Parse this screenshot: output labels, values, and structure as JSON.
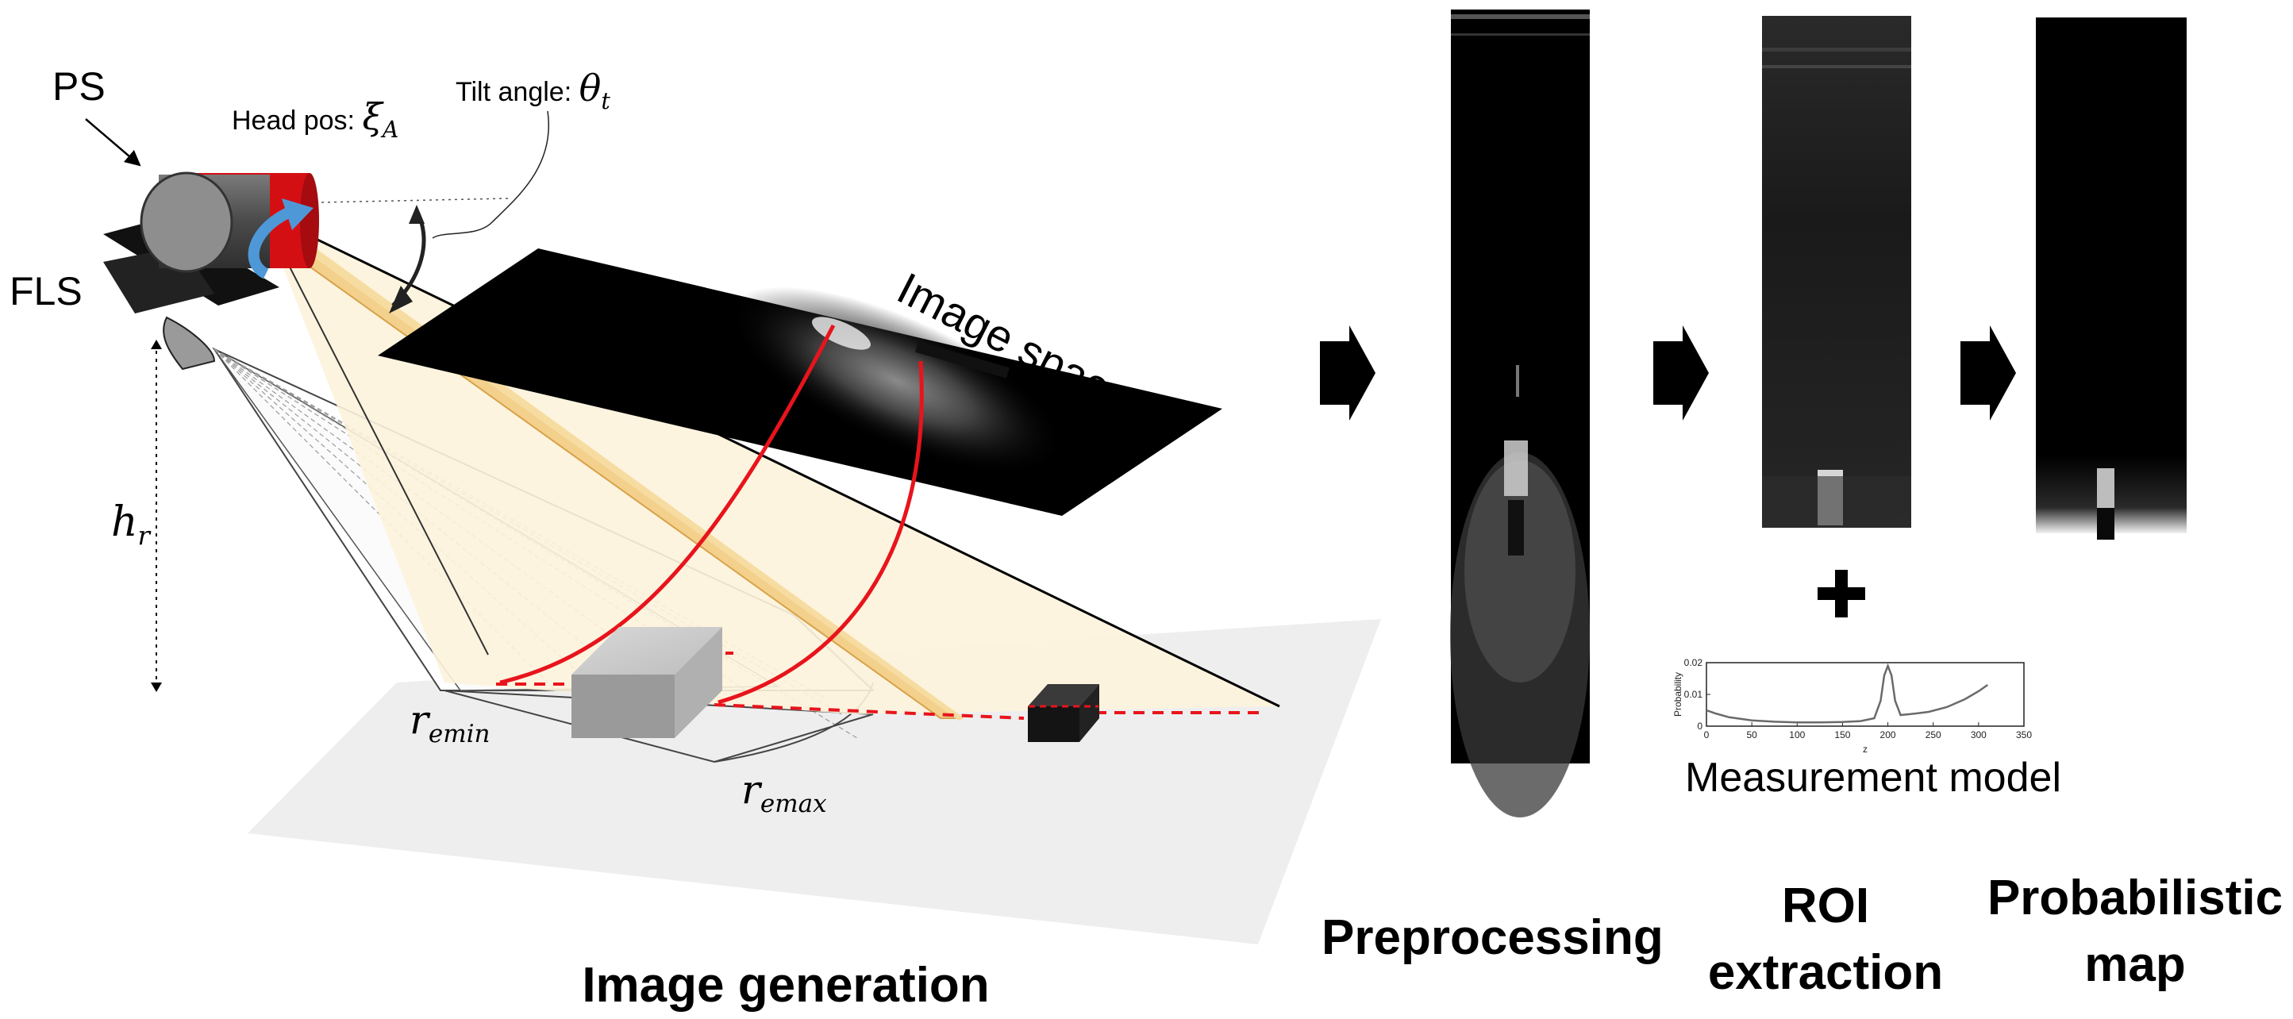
{
  "labels": {
    "ps": "PS",
    "fls": "FLS",
    "head_pos_text": "Head pos:",
    "head_pos_symbol": "ξ",
    "head_pos_sub": "A",
    "tilt_text": "Tilt angle:",
    "tilt_symbol": "θ",
    "tilt_sub": "t",
    "h_symbol": "h",
    "h_sub": "r",
    "remin_symbol": "r",
    "remin_sub": "emin",
    "remax_symbol": "r",
    "remax_sub": "emax",
    "image_space": "Image space"
  },
  "captions": {
    "image_generation": "Image generation",
    "preprocessing": "Preprocessing",
    "roi_line1": "ROI",
    "roi_line2": "extraction",
    "prob_line1": "Probabilistic",
    "prob_line2": "map",
    "measurement_model": "Measurement model",
    "plus": "+"
  },
  "colors": {
    "beam_fill": "#fdf3dc",
    "beam_edge": "#f3cf7a",
    "red_arc": "#e8141c",
    "camera_red": "#d40f14",
    "rotate_arrow": "#4f98d8",
    "floor": "#efefef"
  },
  "chart_data": {
    "type": "line",
    "title": "",
    "xlabel": "z",
    "ylabel": "Probability",
    "xlim": [
      0,
      350
    ],
    "ylim": [
      0,
      0.02
    ],
    "xticks": [
      "0",
      "50",
      "100",
      "150",
      "200",
      "250",
      "300",
      "350"
    ],
    "yticks": [
      "0",
      "0.01",
      "0.02"
    ],
    "series": [
      {
        "x": [
          0,
          10,
          25,
          50,
          75,
          100,
          125,
          150,
          170,
          185,
          192,
          196,
          200,
          204,
          208,
          214,
          225,
          245,
          265,
          285,
          300,
          310
        ],
        "y": [
          0.005,
          0.004,
          0.0028,
          0.0018,
          0.0014,
          0.0012,
          0.0012,
          0.0013,
          0.0016,
          0.0025,
          0.008,
          0.016,
          0.019,
          0.016,
          0.008,
          0.0035,
          0.0038,
          0.0045,
          0.006,
          0.0085,
          0.011,
          0.013
        ]
      }
    ]
  }
}
